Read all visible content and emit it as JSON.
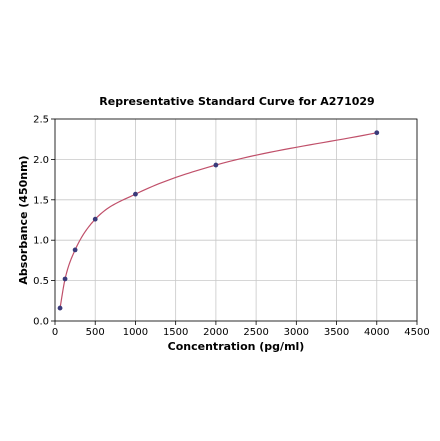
{
  "chart_data": {
    "type": "scatter",
    "title": "Representative Standard Curve for A271029",
    "xlabel": "Concentration (pg/ml)",
    "ylabel": "Absorbance (450nm)",
    "xlim": [
      0,
      4500
    ],
    "ylim": [
      0,
      2.5
    ],
    "xticks": [
      "0",
      "500",
      "1000",
      "1500",
      "2000",
      "2500",
      "3000",
      "3500",
      "4000",
      "4500"
    ],
    "yticks": [
      "0.0",
      "0.5",
      "1.0",
      "1.5",
      "2.0",
      "2.5"
    ],
    "grid": true,
    "series": [
      {
        "x": [
          62.5,
          125,
          250,
          500,
          1000,
          2000,
          4000
        ],
        "y": [
          0.16,
          0.52,
          0.88,
          1.26,
          1.57,
          1.93,
          2.33
        ],
        "marker_color": "#3a3a7a",
        "fit_line_color": "#c0506a"
      }
    ]
  }
}
